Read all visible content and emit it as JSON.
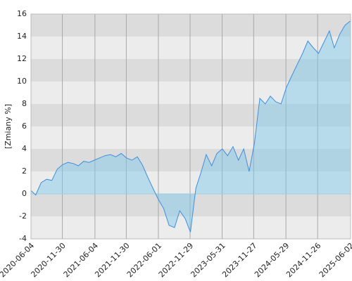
{
  "chart_data": {
    "type": "area",
    "y_label": "[Zmiany %]",
    "x": [
      "2020-06-04",
      "2020-07-01",
      "2020-08-01",
      "2020-09-01",
      "2020-10-01",
      "2020-11-01",
      "2020-12-01",
      "2021-01-01",
      "2021-02-01",
      "2021-03-01",
      "2021-04-01",
      "2021-05-01",
      "2021-06-01",
      "2021-07-01",
      "2021-08-01",
      "2021-09-01",
      "2021-10-01",
      "2021-11-01",
      "2021-12-01",
      "2022-01-01",
      "2022-02-01",
      "2022-03-01",
      "2022-04-01",
      "2022-05-01",
      "2022-06-01",
      "2022-07-01",
      "2022-08-01",
      "2022-09-01",
      "2022-10-01",
      "2022-11-01",
      "2022-12-01",
      "2023-01-01",
      "2023-02-01",
      "2023-03-01",
      "2023-04-01",
      "2023-05-01",
      "2023-06-01",
      "2023-07-01",
      "2023-08-01",
      "2023-09-01",
      "2023-10-01",
      "2023-11-01",
      "2023-12-01",
      "2024-01-01",
      "2024-02-01",
      "2024-03-01",
      "2024-04-01",
      "2024-05-01",
      "2024-06-01",
      "2024-07-01",
      "2024-08-01",
      "2024-09-01",
      "2024-10-01",
      "2024-11-01",
      "2024-12-01",
      "2025-01-01",
      "2025-02-01",
      "2025-03-01",
      "2025-04-01",
      "2025-05-01",
      "2025-06-02"
    ],
    "series": [
      {
        "name": "Zmiany",
        "color": "#3d8fe0",
        "values": [
          0.3,
          -0.1,
          1.0,
          1.3,
          1.2,
          2.2,
          2.6,
          2.8,
          2.7,
          2.5,
          2.9,
          2.8,
          3.0,
          3.2,
          3.4,
          3.5,
          3.3,
          3.6,
          3.2,
          3.0,
          3.3,
          2.6,
          1.5,
          0.5,
          -0.5,
          -1.3,
          -2.8,
          -3.0,
          -1.5,
          -2.2,
          -3.4,
          0.5,
          2.0,
          3.5,
          2.5,
          3.6,
          4.0,
          3.4,
          4.2,
          3.0,
          4.0,
          2.0,
          4.5,
          8.5,
          8.0,
          8.7,
          8.2,
          8.0,
          9.5,
          10.5,
          11.5,
          12.5,
          13.6,
          13.0,
          12.5,
          13.5,
          14.5,
          13.0,
          14.2,
          15.0,
          15.4
        ]
      }
    ],
    "xlim": [
      "2020-06-04",
      "2025-06-02"
    ],
    "xticks": [
      "2020-06-04",
      "2020-11-30",
      "2021-06-04",
      "2021-11-30",
      "2022-06-01",
      "2022-11-29",
      "2023-05-31",
      "2023-11-27",
      "2024-05-29",
      "2024-11-26",
      "2025-06-02"
    ],
    "ylim": [
      -4,
      16
    ],
    "yticks": [
      -4,
      -2,
      0,
      2,
      4,
      6,
      8,
      10,
      12,
      14,
      16
    ],
    "grid": true
  }
}
